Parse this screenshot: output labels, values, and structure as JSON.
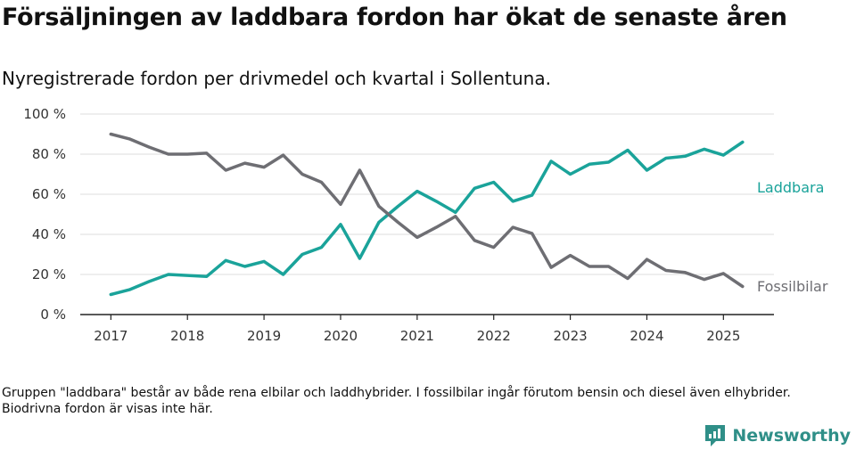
{
  "header": {
    "title": "Försäljningen av laddbara fordon har ökat de senaste åren",
    "subtitle": "Nyregistrerade fordon per drivmedel och kvartal i Sollentuna."
  },
  "footnote": "Gruppen \"laddbara\" består av både rena elbilar och laddhybrider. I fossilbilar ingår förutom bensin och diesel även elhybrider. Biodrivna fordon är visas inte här.",
  "brand": {
    "name": "Newsworthy",
    "icon": "newsworthy-logo-icon"
  },
  "colors": {
    "laddbara": "#1aa39a",
    "fossil": "#6e6e73",
    "grid": "#dddddd",
    "axis": "#222222"
  },
  "chart_data": {
    "type": "line",
    "x_ticks": [
      "2017",
      "2018",
      "2019",
      "2020",
      "2021",
      "2022",
      "2023",
      "2024",
      "2025"
    ],
    "y_ticks": [
      "0 %",
      "20 %",
      "40 %",
      "60 %",
      "80 %",
      "100 %"
    ],
    "ylim": [
      0,
      100
    ],
    "xlim": [
      2016.6,
      2025.66
    ],
    "grid": true,
    "x": [
      2017.0,
      2017.25,
      2017.5,
      2017.75,
      2018.0,
      2018.25,
      2018.5,
      2018.75,
      2019.0,
      2019.25,
      2019.5,
      2019.75,
      2020.0,
      2020.25,
      2020.5,
      2020.75,
      2021.0,
      2021.25,
      2021.5,
      2021.75,
      2022.0,
      2022.25,
      2022.5,
      2022.75,
      2023.0,
      2023.25,
      2023.5,
      2023.75,
      2024.0,
      2024.25,
      2024.5,
      2024.75,
      2025.0,
      2025.25
    ],
    "series": [
      {
        "name": "Laddbara",
        "color": "#1aa39a",
        "values": [
          10,
          12.5,
          16.5,
          20,
          19.5,
          19,
          27,
          24,
          26.5,
          20,
          30,
          33.5,
          45,
          28,
          46,
          54,
          61.5,
          56.5,
          51,
          63,
          66,
          56.5,
          59.5,
          76.5,
          70,
          75,
          76,
          82,
          72,
          78,
          79,
          82.5,
          79.5,
          86
        ]
      },
      {
        "name": "Fossilbilar",
        "color": "#6e6e73",
        "values": [
          90,
          87.5,
          83.5,
          80,
          80,
          80.5,
          72,
          75.5,
          73.5,
          79.5,
          70,
          66,
          55,
          72,
          54,
          46,
          38.5,
          43.5,
          49,
          37,
          33.5,
          43.5,
          40.5,
          23.5,
          29.5,
          24,
          24,
          18,
          27.5,
          22,
          21,
          17.5,
          20.5,
          14
        ]
      }
    ]
  }
}
